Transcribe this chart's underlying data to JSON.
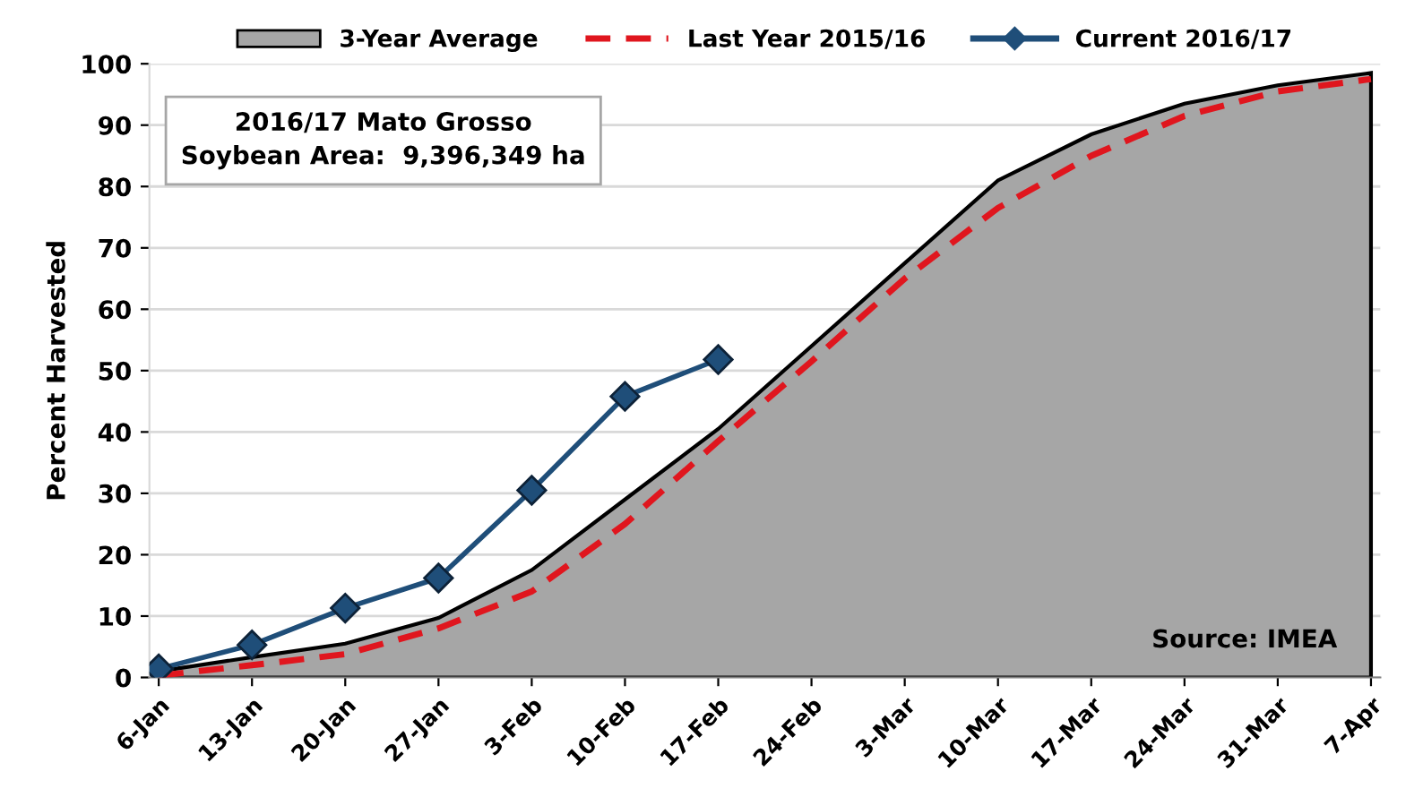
{
  "chart_data": {
    "type": "line",
    "ylabel": "Percent Harvested",
    "categories": [
      "6-Jan",
      "13-Jan",
      "20-Jan",
      "27-Jan",
      "3-Feb",
      "10-Feb",
      "17-Feb",
      "24-Feb",
      "3-Mar",
      "10-Mar",
      "17-Mar",
      "24-Mar",
      "31-Mar",
      "7-Apr"
    ],
    "series": [
      {
        "name": "3-Year Average",
        "type": "area",
        "color": "#a6a6a6",
        "values": [
          1,
          3.3,
          5.5,
          9.7,
          17.5,
          29,
          40.5,
          54,
          67.5,
          81,
          88.5,
          93.5,
          96.5,
          98.5
        ]
      },
      {
        "name": "Last Year 2015/16",
        "color": "#e0161e",
        "line_style": "dashed",
        "marker": "none",
        "values": [
          0.3,
          2,
          3.8,
          8,
          14,
          25,
          38.5,
          51.5,
          65,
          76.5,
          85,
          91.5,
          95.5,
          97.5
        ]
      },
      {
        "name": "Current 2016/17",
        "color": "#1f4e79",
        "line_style": "solid",
        "marker": "diamond",
        "values": [
          1.4,
          5.3,
          11.3,
          16.2,
          30.5,
          45.8,
          51.8,
          null,
          null,
          null,
          null,
          null,
          null,
          null
        ]
      }
    ],
    "ylim": [
      0,
      100
    ],
    "yticks": [
      0,
      10,
      20,
      30,
      40,
      50,
      60,
      70,
      80,
      90,
      100
    ],
    "grid": "y",
    "legend": "top",
    "annotations": [
      "2016/17 Mato Grosso\nSoybean Area:  9,396,349 ha",
      "Source: IMEA"
    ]
  }
}
